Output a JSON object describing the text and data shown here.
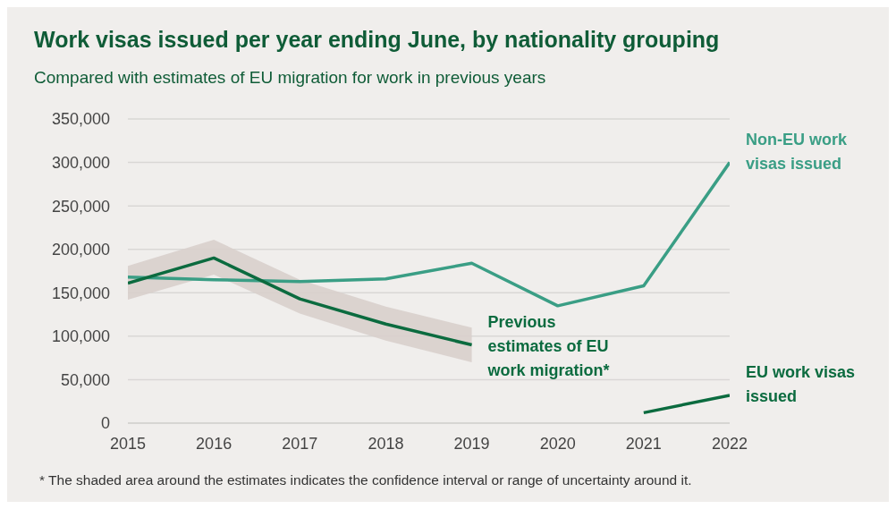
{
  "chart_data": {
    "type": "line",
    "title": "Work visas issued per year ending June, by nationality grouping",
    "subtitle": "Compared with estimates of EU migration for work in previous years",
    "x": [
      2015,
      2016,
      2017,
      2018,
      2019,
      2020,
      2021,
      2022
    ],
    "series": [
      {
        "name": "Non-EU work visas issued",
        "color": "#3a9e85",
        "values": [
          168000,
          165000,
          163000,
          166000,
          184000,
          135000,
          158000,
          300000
        ]
      },
      {
        "name": "Previous estimates of EU work migration*",
        "color": "#0b6b3f",
        "values": [
          161000,
          190000,
          143000,
          114000,
          90000,
          null,
          null,
          null
        ],
        "lower": [
          142000,
          171000,
          126000,
          95000,
          70000,
          null,
          null,
          null
        ],
        "upper": [
          181000,
          211000,
          165000,
          134000,
          110000,
          null,
          null,
          null
        ]
      },
      {
        "name": "EU work visas issued",
        "color": "#0b6b3f",
        "values": [
          null,
          null,
          null,
          null,
          null,
          null,
          12000,
          32000
        ]
      }
    ],
    "xlim": [
      2015,
      2022
    ],
    "xticks": [
      2015,
      2016,
      2017,
      2018,
      2019,
      2020,
      2021,
      2022
    ],
    "ylim": [
      0,
      350000
    ],
    "yticks": [
      {
        "value": 0,
        "label": "0"
      },
      {
        "value": 50000,
        "label": "50,000"
      },
      {
        "value": 100000,
        "label": "100,000"
      },
      {
        "value": 150000,
        "label": "150,000"
      },
      {
        "value": 200000,
        "label": "200,000"
      },
      {
        "value": 250000,
        "label": "250,000"
      },
      {
        "value": 300000,
        "label": "300,000"
      },
      {
        "value": 350000,
        "label": "350,000"
      }
    ],
    "grid": "y",
    "legend": false,
    "marker": "none",
    "line_style": "solid",
    "annotations": [
      "* The shaded area around the estimates indicates the confidence interval or range of uncertainty around it."
    ]
  }
}
